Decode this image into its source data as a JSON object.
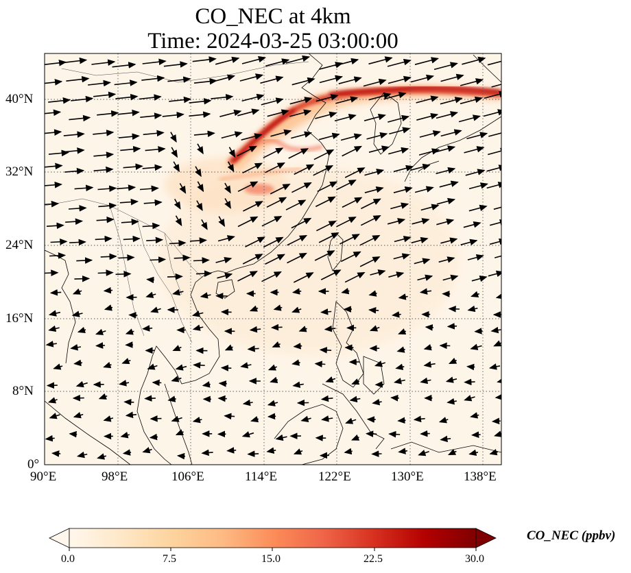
{
  "title": {
    "line1": "CO_NEC at 4km",
    "line2": "Time: 2024-03-25 03:00:00"
  },
  "map": {
    "projection": "PlateCarree",
    "lon_range": [
      90,
      140
    ],
    "lat_range": [
      0,
      45
    ],
    "lon_ticks": [
      "90°E",
      "98°E",
      "106°E",
      "114°E",
      "122°E",
      "130°E",
      "138°E"
    ],
    "lat_ticks": [
      "0°",
      "8°N",
      "16°N",
      "24°N",
      "32°N",
      "40°N"
    ],
    "gridlines": "dotted",
    "field": "CO_NEC",
    "plume_description": "high concentration band along 35–41°N from 110°E to 140°E",
    "wind_vectors": "westerly flow north of 24°N, weak easterlies to the south"
  },
  "colorbar": {
    "label": "CO_NEC (ppbv)",
    "colormap": "OrRd",
    "range": [
      0.0,
      30.0
    ],
    "ticks": [
      "0.0",
      "7.5",
      "15.0",
      "22.5",
      "30.0"
    ],
    "extend": "both",
    "colors": [
      "#fff7ec",
      "#fee8c8",
      "#fdd49e",
      "#fdbb84",
      "#fc8d59",
      "#ef6548",
      "#d7301f",
      "#b30000",
      "#7f0000"
    ]
  }
}
